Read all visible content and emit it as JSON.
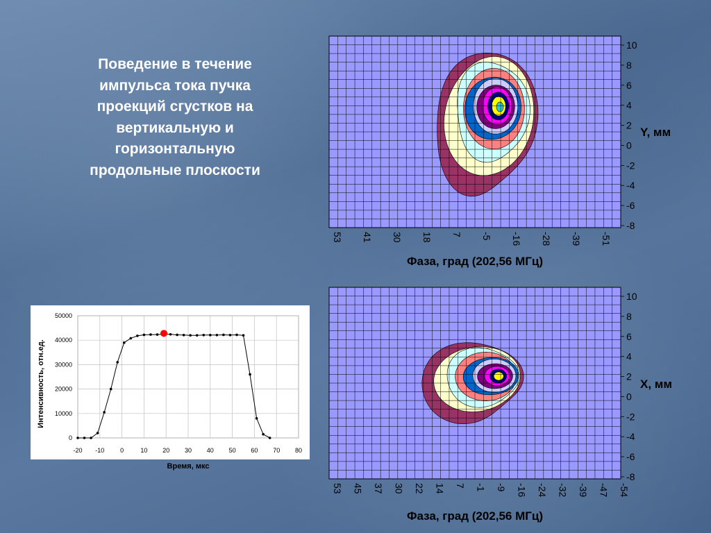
{
  "slide": {
    "title": "Поведение в течение\nимпульса тока пучка\nпроекций сгустков на\nвертикальную и\nгоризонтальную\nпродольные плоскости"
  },
  "colors": {
    "plot_bg": "#9999ff",
    "grid": "#000000",
    "contour_levels": [
      "#993366",
      "#ffffcc",
      "#ccffff",
      "#ff8080",
      "#0066cc",
      "#ccccff",
      "#800080",
      "#ff00ff",
      "#000080",
      "#ffff00",
      "#33cccc"
    ]
  },
  "chart_data": [
    {
      "type": "heatmap",
      "title": "",
      "xlabel": "Фаза, град (202,56 МГц)",
      "ylabel": "Y, мм",
      "x_tick_labels": [
        "53",
        "41",
        "30",
        "18",
        "7",
        "-5",
        "-16",
        "-28",
        "-39",
        "-51"
      ],
      "y_tick_labels": [
        "10",
        "8",
        "6",
        "4",
        "2",
        "0",
        "-2",
        "-4",
        "-6",
        "-8"
      ],
      "ylim": [
        -8,
        10
      ],
      "grid": true
    },
    {
      "type": "line",
      "title": "",
      "xlabel": "Время, мкс",
      "ylabel": "Интенсивность, отн.ед.",
      "xlim": [
        -20,
        80
      ],
      "ylim": [
        0,
        50000
      ],
      "x_ticks": [
        -20,
        -10,
        0,
        10,
        20,
        30,
        40,
        50,
        60,
        70,
        80
      ],
      "y_ticks": [
        0,
        10000,
        20000,
        30000,
        40000,
        50000
      ],
      "x": [
        -20,
        -17,
        -14,
        -11,
        -8,
        -5,
        -2,
        1,
        4,
        7,
        10,
        13,
        16,
        19,
        22,
        25,
        28,
        31,
        34,
        37,
        40,
        43,
        46,
        49,
        52,
        55,
        58,
        61,
        64,
        67
      ],
      "values": [
        0,
        0,
        0,
        2000,
        10500,
        20000,
        31000,
        39000,
        40800,
        41800,
        42200,
        42300,
        42300,
        42500,
        42400,
        42200,
        42100,
        42000,
        42000,
        42100,
        42100,
        42100,
        42200,
        42100,
        42200,
        42000,
        26000,
        8000,
        1500,
        0
      ],
      "highlight": {
        "x": 19,
        "y": 42800
      },
      "grid": true
    },
    {
      "type": "heatmap",
      "title": "",
      "xlabel": "Фаза, град (202,56 МГц)",
      "ylabel": "X, мм",
      "x_tick_labels": [
        "53",
        "45",
        "37",
        "30",
        "22",
        "14",
        "7",
        "-1",
        "-9",
        "-16",
        "-24",
        "-32",
        "-39",
        "-47",
        "-54"
      ],
      "y_tick_labels": [
        "10",
        "8",
        "6",
        "4",
        "2",
        "0",
        "-2",
        "-4",
        "-6",
        "-8"
      ],
      "ylim": [
        -8,
        10
      ],
      "grid": true
    }
  ]
}
